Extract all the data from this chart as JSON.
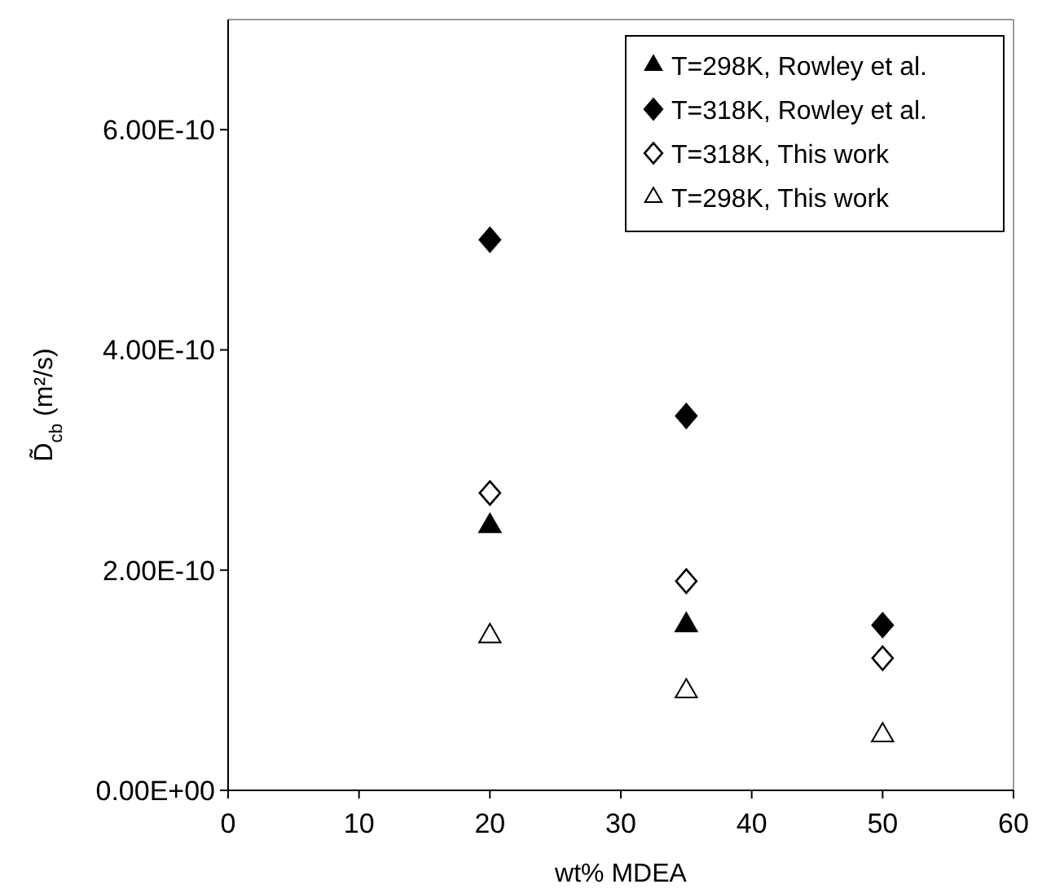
{
  "chart_data": {
    "type": "scatter",
    "xlabel": "wt% MDEA",
    "ylabel": "D̃$_{cb}$ (m²/s)",
    "x": [
      20,
      35,
      50
    ],
    "series": [
      {
        "name": "T=298K, Rowley et al.",
        "color": "#000000",
        "marker": "triangle",
        "values": [
          2.4e-10,
          1.5e-10,
          null
        ]
      },
      {
        "name": "T=318K, Rowley et al.",
        "color": "#000000",
        "marker": "diamond",
        "values": [
          5e-10,
          3.4e-10,
          1.5e-10
        ]
      },
      {
        "name": "T=318K, This work",
        "color": "#ffffff",
        "marker": "diamond",
        "values": [
          2.7e-10,
          1.9e-10,
          1.2e-10
        ]
      },
      {
        "name": "T=298K, This work",
        "color": "#ffffff",
        "marker": "triangle",
        "values": [
          1.4e-10,
          9e-11,
          5e-11
        ]
      }
    ],
    "xlim": [
      0,
      60
    ],
    "xticks": [
      0,
      10,
      20,
      30,
      40,
      50,
      60
    ],
    "ylim": [
      0,
      7e-10
    ],
    "yticks": [
      {
        "value": 0,
        "label": "0.00E+00"
      },
      {
        "value": 2e-10,
        "label": "2.00E-10"
      },
      {
        "value": 4e-10,
        "label": "4.00E-10"
      },
      {
        "value": 6e-10,
        "label": "6.00E-10"
      }
    ],
    "grid": false,
    "legend": "top right"
  }
}
